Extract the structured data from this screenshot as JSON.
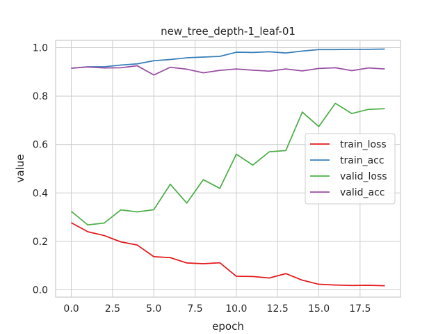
{
  "chart_data": {
    "type": "line",
    "title": "new_tree_depth-1_leaf-01",
    "xlabel": "epoch",
    "ylabel": "value",
    "xlim": [
      -0.95,
      19.95
    ],
    "ylim": [
      -0.03,
      1.03
    ],
    "xticks": [
      0.0,
      2.5,
      5.0,
      7.5,
      10.0,
      12.5,
      15.0,
      17.5
    ],
    "xtick_labels": [
      "0.0",
      "2.5",
      "5.0",
      "7.5",
      "10.0",
      "12.5",
      "15.0",
      "17.5"
    ],
    "yticks": [
      0.0,
      0.2,
      0.4,
      0.6,
      0.8,
      1.0
    ],
    "ytick_labels": [
      "0.0",
      "0.2",
      "0.4",
      "0.6",
      "0.8",
      "1.0"
    ],
    "grid": true,
    "legend_position": "center-right",
    "x": [
      0,
      1,
      2,
      3,
      4,
      5,
      6,
      7,
      8,
      9,
      10,
      11,
      12,
      13,
      14,
      15,
      16,
      17,
      18,
      19
    ],
    "series": [
      {
        "name": "train_loss",
        "color": "#e31a1c",
        "values": [
          0.277,
          0.24,
          0.224,
          0.198,
          0.185,
          0.137,
          0.133,
          0.111,
          0.108,
          0.112,
          0.056,
          0.055,
          0.049,
          0.067,
          0.04,
          0.023,
          0.02,
          0.018,
          0.019,
          0.017
        ]
      },
      {
        "name": "train_acc",
        "color": "#377eb8",
        "values": [
          0.915,
          0.921,
          0.921,
          0.928,
          0.933,
          0.946,
          0.951,
          0.958,
          0.961,
          0.964,
          0.981,
          0.98,
          0.983,
          0.978,
          0.986,
          0.992,
          0.992,
          0.993,
          0.993,
          0.994
        ]
      },
      {
        "name": "valid_loss",
        "color": "#4daf4a",
        "values": [
          0.324,
          0.268,
          0.276,
          0.33,
          0.322,
          0.331,
          0.436,
          0.358,
          0.455,
          0.419,
          0.56,
          0.515,
          0.57,
          0.575,
          0.734,
          0.674,
          0.77,
          0.728,
          0.745,
          0.748
        ]
      },
      {
        "name": "valid_acc",
        "color": "#984ea3",
        "values": [
          0.915,
          0.92,
          0.916,
          0.917,
          0.925,
          0.887,
          0.919,
          0.911,
          0.896,
          0.906,
          0.912,
          0.907,
          0.903,
          0.912,
          0.904,
          0.914,
          0.917,
          0.905,
          0.916,
          0.912
        ]
      }
    ]
  }
}
